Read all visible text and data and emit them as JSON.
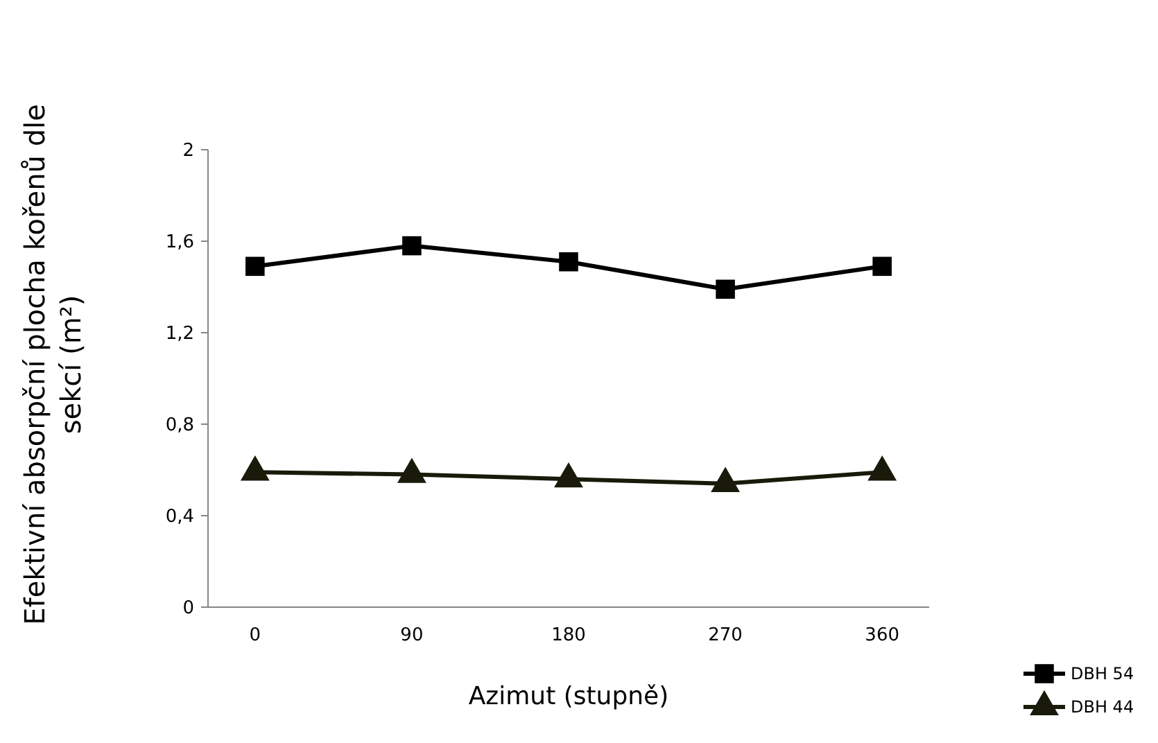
{
  "chart_data": {
    "type": "line",
    "xlabel": "Azimut (stupně)",
    "ylabel": "Efektivní absorpční plocha kořenů dle sekcí  (m²)",
    "categories": [
      "0",
      "90",
      "180",
      "270",
      "360"
    ],
    "ylim": [
      0,
      2
    ],
    "yticks": [
      0,
      {
        "value": 0.4,
        "label": "0,4"
      },
      {
        "value": 0.8,
        "label": "0,8"
      },
      {
        "value": 1.2,
        "label": "1,2"
      },
      {
        "value": 1.6,
        "label": "1,6"
      },
      2
    ],
    "grid": false,
    "legend": "bottom right",
    "line_style": "solid",
    "series": [
      {
        "name": "DBH 54",
        "color": "#000000",
        "marker": "square",
        "values": [
          1.49,
          1.58,
          1.51,
          1.39,
          1.49
        ]
      },
      {
        "name": "DBH 44",
        "color": "#1a1a0a",
        "marker": "triangle",
        "values": [
          0.59,
          0.58,
          0.56,
          0.54,
          0.59
        ]
      }
    ]
  }
}
